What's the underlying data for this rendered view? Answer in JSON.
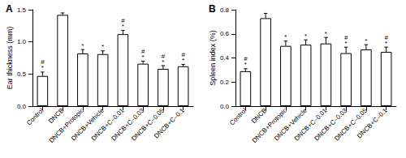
{
  "chart_data": [
    {
      "type": "bar",
      "title": "A",
      "y_label": "Ear thickness (mm)",
      "categories": [
        "Control",
        "DNCB",
        "DNCB+Protopic",
        "DNCB+Vehicle",
        "DNCB+C–0.01",
        "DNCB+C–0.03",
        "DNCB+C–0.05",
        "DNCB+C–0.1"
      ],
      "values": [
        0.47,
        1.42,
        0.82,
        0.81,
        1.12,
        0.66,
        0.58,
        0.62
      ],
      "errors": [
        0.06,
        0.03,
        0.06,
        0.05,
        0.06,
        0.04,
        0.05,
        0.03
      ],
      "annotations": [
        [
          "*",
          "#"
        ],
        [],
        [
          "*"
        ],
        [
          "*"
        ],
        [
          "*",
          "#"
        ],
        [
          "*",
          "#"
        ],
        [
          "*",
          "#"
        ],
        [
          "*",
          "#"
        ]
      ],
      "color": "#ffffff",
      "ylim": [
        0,
        1.5
      ],
      "yticks": [
        {
          "value": 0,
          "label": "0.0"
        },
        {
          "value": 0.5,
          "label": "0.5"
        },
        {
          "value": 1,
          "label": "1.0"
        },
        {
          "value": 1.5,
          "label": "1.5"
        }
      ],
      "grid": false
    },
    {
      "type": "bar",
      "title": "B",
      "y_label": "Spleen index (%)",
      "categories": [
        "Control",
        "DNCB",
        "DNCB+Protopic",
        "DNCB+Vehicle",
        "DNCB+C–0.01",
        "DNCB+C–0.03",
        "DNCB+C–0.05",
        "DNCB+C–0.1"
      ],
      "values": [
        0.29,
        0.73,
        0.5,
        0.51,
        0.52,
        0.44,
        0.47,
        0.45
      ],
      "errors": [
        0.02,
        0.04,
        0.04,
        0.04,
        0.05,
        0.05,
        0.04,
        0.04
      ],
      "annotations": [
        [
          "*",
          "#"
        ],
        [],
        [
          "*"
        ],
        [
          "*"
        ],
        [
          "*"
        ],
        [
          "*",
          "#"
        ],
        [
          "*"
        ],
        [
          "*",
          "#"
        ]
      ],
      "color": "#ffffff",
      "ylim": [
        0,
        0.8
      ],
      "yticks": [
        {
          "value": 0,
          "label": "0.0"
        },
        {
          "value": 0.2,
          "label": "0.2"
        },
        {
          "value": 0.4,
          "label": "0.4"
        },
        {
          "value": 0.6,
          "label": "0.6"
        },
        {
          "value": 0.8,
          "label": "0.8"
        }
      ],
      "grid": false
    }
  ]
}
